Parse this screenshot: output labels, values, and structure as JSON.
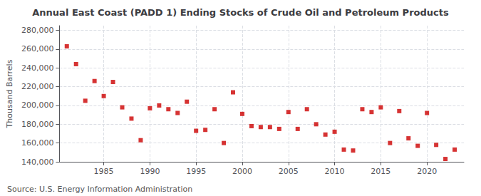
{
  "chart_data": {
    "type": "scatter",
    "title": "Annual East Coast (PADD 1) Ending Stocks of Crude Oil and Petroleum Products",
    "ylabel": "Thousand Barrels",
    "annotations": [
      "Source: U.S. Energy Information Administration"
    ],
    "color": "#cc0000",
    "marker": "square",
    "grid": true,
    "xlim": [
      1980.2,
      2024
    ],
    "xticks": [
      1985,
      1990,
      1995,
      2000,
      2005,
      2010,
      2015,
      2020
    ],
    "ylim": [
      140000,
      285000
    ],
    "yticks": [
      {
        "value": 140000,
        "label": "140,000"
      },
      {
        "value": 160000,
        "label": "160,000"
      },
      {
        "value": 180000,
        "label": "180,000"
      },
      {
        "value": 200000,
        "label": "200,000"
      },
      {
        "value": 220000,
        "label": "220,000"
      },
      {
        "value": 240000,
        "label": "240,000"
      },
      {
        "value": 260000,
        "label": "260,000"
      },
      {
        "value": 280000,
        "label": "280,000"
      }
    ],
    "x": [
      1981,
      1982,
      1983,
      1984,
      1985,
      1986,
      1987,
      1988,
      1989,
      1990,
      1991,
      1992,
      1993,
      1994,
      1995,
      1996,
      1997,
      1998,
      1999,
      2000,
      2001,
      2002,
      2003,
      2004,
      2005,
      2006,
      2007,
      2008,
      2009,
      2010,
      2011,
      2012,
      2013,
      2014,
      2015,
      2016,
      2017,
      2018,
      2019,
      2020,
      2021,
      2022,
      2023
    ],
    "values": [
      263000,
      244000,
      205000,
      226000,
      210000,
      225000,
      198000,
      186000,
      163000,
      197000,
      200000,
      196000,
      192000,
      204000,
      173000,
      174000,
      196000,
      160000,
      214000,
      191000,
      178000,
      177000,
      177000,
      175000,
      193000,
      175000,
      196000,
      180000,
      169000,
      172000,
      153000,
      152000,
      196000,
      193000,
      198000,
      160000,
      194000,
      165000,
      157000,
      192000,
      158000,
      143000,
      153000
    ]
  }
}
